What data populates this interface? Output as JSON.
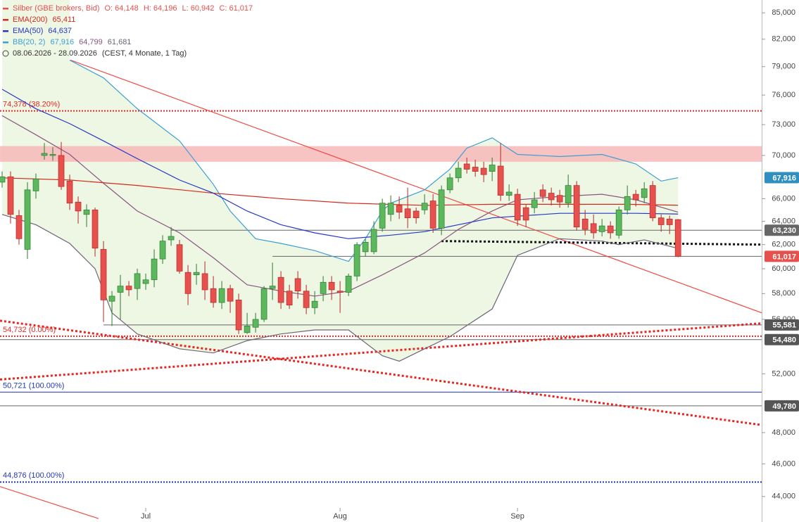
{
  "chart_data": {
    "type": "candlestick",
    "period": "08.06.2026 - 28.09.2026",
    "period_note": "(CEST, 4 Monate, 1 Tag)",
    "log_scale": true,
    "ylim": [
      42.5,
      86.5
    ],
    "xlim": [
      -0.25,
      89.9
    ],
    "yticks": [
      {
        "value": 85,
        "label": "85,000"
      },
      {
        "value": 82,
        "label": "82,000"
      },
      {
        "value": 79,
        "label": "79,000"
      },
      {
        "value": 76,
        "label": "76,000"
      },
      {
        "value": 73,
        "label": "73,000"
      },
      {
        "value": 70,
        "label": "70,000"
      },
      {
        "value": 66,
        "label": "66,000"
      },
      {
        "value": 64,
        "label": "64,000"
      },
      {
        "value": 62,
        "label": "62,000"
      },
      {
        "value": 60,
        "label": "60,000"
      },
      {
        "value": 58,
        "label": "58,000"
      },
      {
        "value": 56,
        "label": "56,000"
      },
      {
        "value": 52,
        "label": "52,000"
      },
      {
        "value": 48,
        "label": "48,000"
      },
      {
        "value": 46,
        "label": "46,000"
      },
      {
        "value": 44,
        "label": "44,000"
      }
    ],
    "categories": [
      null,
      null,
      null,
      null,
      null,
      null,
      null,
      null,
      null,
      null,
      null,
      null,
      null,
      null,
      null,
      null,
      null,
      "Jul",
      null,
      null,
      null,
      null,
      null,
      null,
      null,
      null,
      null,
      null,
      null,
      null,
      null,
      null,
      null,
      null,
      null,
      null,
      null,
      null,
      null,
      null,
      "Aug",
      null,
      null,
      null,
      null,
      null,
      null,
      null,
      null,
      null,
      null,
      null,
      null,
      null,
      null,
      null,
      null,
      null,
      null,
      null,
      null,
      "Sep",
      null,
      null,
      null,
      null,
      null,
      null,
      null,
      null,
      null,
      null,
      null,
      null,
      null,
      null,
      null,
      null,
      null,
      null,
      null
    ],
    "series": [
      {
        "name": "Silber (GBE brokers, Bid)",
        "up_color": "#5cb85c",
        "down_color": "#e8504d",
        "ohlc_labels": [
          "O: 64,148",
          "H: 64,196",
          "L: 60,942",
          "C: 61,017"
        ],
        "open": [
          67.5,
          68,
          64.5,
          61.6,
          66.7,
          70.0,
          70.0,
          70.0,
          67.6,
          65.7,
          64.6,
          65.0,
          61.6,
          57.4,
          58.1,
          58.6,
          58.4,
          58.8,
          59.1,
          60.8,
          62.4,
          62.0,
          59.7,
          59.5,
          59.6,
          58.4,
          57.3,
          58.4,
          57.5,
          55.0,
          55.4,
          56.0,
          58.4,
          59.3,
          58.2,
          59.2,
          58.2,
          56.9,
          58.0,
          58.9,
          58.2,
          58.1,
          59.4,
          61.4,
          61.4,
          63.4,
          64.6,
          65.4,
          65.1,
          64.9,
          65.0,
          65.8,
          63.4,
          66.8,
          67.9,
          69.2,
          68.9,
          68.8,
          68.5,
          69.0,
          66.3,
          66.4,
          65.2,
          65.2,
          66.8,
          66.5,
          66.3,
          65.6,
          67.2,
          64.2,
          63.8,
          63.1,
          63.6,
          62.8,
          65.0,
          66.4,
          66.1,
          67.2,
          64.3,
          64.2,
          64.148
        ],
        "high": [
          68.5,
          68.5,
          65.0,
          67.5,
          68.3,
          71.2,
          70.8,
          71.3,
          68.2,
          66.2,
          65.5,
          65.2,
          62.3,
          58.2,
          59.5,
          59.0,
          60.0,
          59.6,
          61.6,
          62.8,
          63.5,
          62.4,
          60.3,
          60.4,
          60.6,
          59.4,
          59.0,
          58.7,
          58.0,
          56.5,
          56.5,
          58.6,
          60.5,
          59.8,
          58.7,
          59.8,
          58.7,
          58.2,
          59.4,
          59.4,
          59.0,
          59.6,
          62.2,
          62.5,
          64.0,
          66.0,
          66.3,
          66.2,
          67.0,
          65.2,
          66.4,
          66.4,
          67.2,
          68.3,
          69.4,
          69.8,
          69.6,
          69.4,
          69.8,
          71.2,
          67.3,
          66.9,
          65.5,
          66.6,
          67.3,
          67.0,
          66.8,
          68.2,
          67.6,
          65.0,
          64.6,
          64.2,
          64.0,
          65.3,
          67.2,
          66.8,
          67.5,
          67.6,
          64.6,
          64.5,
          64.196
        ],
        "low": [
          67.0,
          63.8,
          62.0,
          60.8,
          66.0,
          69.6,
          69.5,
          66.8,
          65.0,
          63.8,
          63.5,
          61.0,
          55.8,
          55.5,
          56.0,
          57.8,
          57.5,
          58.3,
          58.5,
          60.4,
          61.9,
          59.6,
          57.1,
          58.7,
          57.5,
          56.9,
          56.8,
          56.5,
          54.9,
          54.9,
          55.0,
          55.8,
          57.5,
          56.8,
          56.8,
          57.6,
          56.4,
          56.4,
          57.4,
          57.5,
          56.5,
          57.8,
          59.0,
          61.0,
          61.2,
          63.1,
          64.0,
          64.2,
          63.4,
          63.8,
          64.6,
          63.0,
          62.8,
          66.5,
          67.5,
          68.3,
          68.0,
          67.5,
          67.6,
          65.8,
          65.8,
          63.6,
          63.5,
          64.7,
          65.7,
          65.4,
          65.2,
          65.2,
          63.2,
          62.8,
          62.5,
          62.7,
          62.5,
          62.5,
          64.6,
          65.3,
          65.6,
          64.0,
          63.1,
          62.9,
          60.942
        ],
        "close": [
          68.0,
          64.6,
          62.5,
          66.8,
          67.8,
          70.2,
          70.1,
          67.1,
          65.6,
          64.9,
          65.0,
          61.7,
          57.5,
          57.8,
          58.6,
          58.3,
          59.6,
          59.1,
          60.8,
          62.3,
          62.7,
          59.8,
          58.0,
          59.7,
          58.3,
          57.3,
          58.4,
          57.4,
          55.2,
          55.5,
          56.0,
          58.4,
          58.6,
          57.3,
          57.1,
          58.2,
          56.9,
          57.4,
          58.9,
          58.3,
          58.1,
          59.4,
          62.0,
          62.2,
          63.3,
          65.6,
          65.6,
          64.8,
          64.3,
          64.3,
          65.6,
          63.4,
          66.8,
          67.9,
          68.8,
          68.7,
          68.5,
          68.2,
          69.1,
          66.3,
          66.6,
          64.1,
          64.1,
          65.9,
          66.2,
          65.9,
          65.7,
          67.2,
          63.5,
          63.3,
          63.0,
          63.6,
          63.0,
          65.0,
          66.2,
          65.9,
          66.9,
          64.3,
          63.7,
          63.7,
          61.017
        ]
      }
    ],
    "indicators": [
      {
        "name": "EMA(200)",
        "color": "#d42a1e",
        "last": "65,411",
        "x": [
          0,
          8,
          16,
          25,
          33,
          41,
          50,
          58,
          66,
          74,
          80
        ],
        "values": [
          67.9,
          67.7,
          67.2,
          66.5,
          66.0,
          65.6,
          65.4,
          65.5,
          65.5,
          65.5,
          65.411
        ]
      },
      {
        "name": "EMA(50)",
        "color": "#2438c4",
        "last": "64,637",
        "x": [
          0,
          4,
          8,
          12,
          16,
          21,
          25,
          29,
          33,
          37,
          41,
          46,
          50,
          54,
          58,
          62,
          66,
          71,
          75,
          80
        ],
        "values": [
          76.6,
          74.6,
          73.1,
          71.4,
          69.7,
          67.7,
          66.5,
          64.9,
          63.7,
          63.0,
          62.5,
          62.8,
          63.1,
          63.7,
          64.3,
          64.5,
          64.7,
          64.7,
          64.7,
          64.637
        ]
      }
    ],
    "bands": {
      "name": "BB(20, 2)",
      "fill": "#eef6e4",
      "lines": [
        {
          "color": "#3d9fd4",
          "last": "67,916",
          "x": [
            8,
            12,
            16,
            21,
            25,
            27,
            30,
            33,
            37,
            41,
            43,
            45,
            46,
            50,
            53,
            55,
            58,
            61,
            66,
            71,
            75,
            78,
            80
          ],
          "values": [
            79.7,
            77.8,
            74.6,
            71.4,
            67.3,
            64.9,
            62.5,
            62.1,
            61.5,
            60.6,
            62.5,
            64.9,
            65.6,
            66.8,
            68.7,
            70.7,
            71.7,
            70.1,
            69.9,
            70.1,
            69.2,
            67.6,
            67.916
          ]
        },
        {
          "color": "#8a5680",
          "last": "64,799",
          "x": [
            0,
            4,
            8,
            12,
            16,
            21,
            25,
            29,
            33,
            37,
            41,
            45,
            50,
            54,
            58,
            61,
            66,
            71,
            75,
            80
          ],
          "values": [
            73.9,
            72.0,
            70.1,
            67.4,
            64.9,
            63.0,
            60.9,
            58.7,
            58.2,
            57.8,
            58.2,
            59.5,
            61.3,
            63.3,
            64.9,
            65.9,
            66.2,
            66.4,
            65.9,
            64.799
          ]
        },
        {
          "color": "#6c6478",
          "last": "61,681",
          "x": [
            0,
            4,
            8,
            11,
            13,
            16,
            21,
            25,
            29,
            33,
            37,
            41,
            45,
            47,
            50,
            53,
            58,
            61,
            66,
            71,
            73,
            76,
            80
          ],
          "values": [
            64.6,
            63.7,
            62.1,
            60.0,
            56.5,
            54.9,
            53.8,
            53.5,
            54.4,
            54.9,
            55.2,
            55.2,
            53.3,
            52.9,
            53.8,
            54.7,
            56.8,
            61.1,
            62.5,
            62.3,
            62.0,
            62.4,
            61.681
          ]
        }
      ]
    },
    "zone": {
      "from": 69.4,
      "to": 70.9,
      "color": "#f7b8b8"
    },
    "levels": [
      {
        "value": 74.378,
        "label": "74,378 (38.20%)",
        "color": "#e02a2a",
        "dotted": true
      },
      {
        "value": 54.732,
        "label": "54,732 (0.00%)",
        "color": "#e02a2a",
        "dotted": true
      },
      {
        "value": 50.721,
        "label": "50,721 (100.00%)",
        "color": "#1f3aa6",
        "dotted": false
      },
      {
        "value": 44.876,
        "label": "44,876 (100.00%)",
        "color": "#1f3aa6",
        "dotted": true
      }
    ],
    "price_lines": [
      {
        "value": 67.916,
        "label": "67,916",
        "color": "#2f8fc0",
        "start": null
      },
      {
        "value": 63.23,
        "label": "63,230",
        "color": "#666666",
        "start": 20
      },
      {
        "value": 61.017,
        "label": "61,017",
        "color": "#e8504d",
        "start": 32
      },
      {
        "value": 55.581,
        "label": "55,581",
        "color": "#555555",
        "start": 12
      },
      {
        "value": 54.48,
        "label": "54,480",
        "color": "#555555",
        "start": -0.25
      },
      {
        "value": 49.78,
        "label": "49,780",
        "color": "#555555",
        "start": -0.25
      }
    ],
    "trend_lines": [
      {
        "x": [
          8.1,
          89.9
        ],
        "values": [
          79.7,
          56.5
        ],
        "color": "#ef4b45",
        "dotted": false
      },
      {
        "x": [
          -0.25,
          11.4
        ],
        "values": [
          44.6,
          42.7
        ],
        "color": "#ef4b45",
        "dotted": false
      },
      {
        "x": [
          -0.25,
          89.9
        ],
        "values": [
          55.9,
          48.5
        ],
        "color": "#e8261f",
        "dotted": true
      },
      {
        "x": [
          -0.25,
          89.9
        ],
        "values": [
          51.6,
          55.7
        ],
        "color": "#e8261f",
        "dotted": true
      },
      {
        "x": [
          52,
          89.9
        ],
        "values": [
          62.3,
          62.0
        ],
        "color": "#111111",
        "dotted": true
      }
    ]
  }
}
